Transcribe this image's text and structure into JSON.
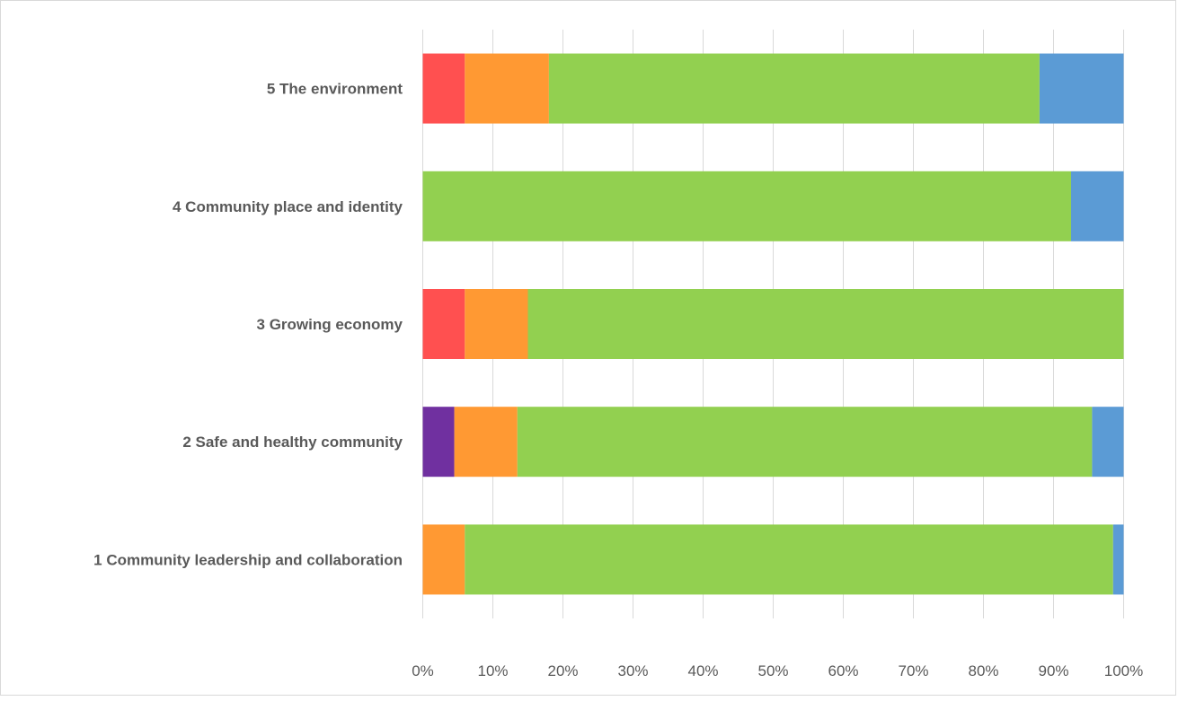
{
  "chart_data": {
    "type": "bar",
    "orientation": "horizontal",
    "stacked": "100%",
    "categories": [
      "1 Community leadership and collaboration",
      "2 Safe and healthy community",
      "3 Growing economy",
      "4 Community place and identity",
      "5 The environment"
    ],
    "series": [
      {
        "color": "#7030a0",
        "values": [
          0,
          4.5,
          0,
          0,
          0
        ]
      },
      {
        "color": "#ff5050",
        "values": [
          0,
          0,
          6,
          0,
          6
        ]
      },
      {
        "color": "#ff9933",
        "values": [
          6,
          9,
          9,
          0,
          12
        ]
      },
      {
        "color": "#92d050",
        "values": [
          92.5,
          82,
          85,
          92.5,
          70
        ]
      },
      {
        "color": "#5b9bd5",
        "values": [
          1.5,
          4.5,
          0,
          7.5,
          12
        ]
      }
    ],
    "xlim": [
      0,
      100
    ],
    "x_ticks": [
      "0%",
      "10%",
      "20%",
      "30%",
      "40%",
      "50%",
      "60%",
      "70%",
      "80%",
      "90%",
      "100%"
    ],
    "grid": "vertical",
    "legend": "none"
  }
}
